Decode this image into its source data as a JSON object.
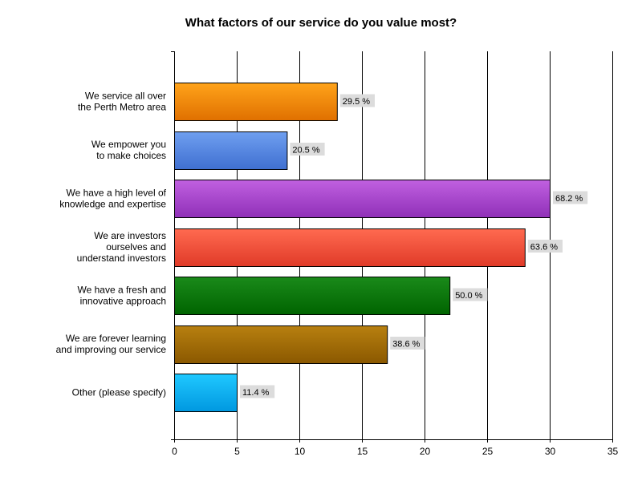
{
  "chart_data": {
    "type": "bar",
    "orientation": "horizontal",
    "title": "What factors of our service do you value most?",
    "xlabel": "",
    "ylabel": "",
    "xlim": [
      0,
      35
    ],
    "x_ticks": [
      "0",
      "5",
      "10",
      "15",
      "20",
      "25",
      "30",
      "35"
    ],
    "grid": true,
    "categories": [
      [
        "We service all over",
        "the Perth Metro area"
      ],
      [
        "We empower you",
        "to make choices"
      ],
      [
        "We have a high level of",
        "knowledge and expertise"
      ],
      [
        "We are investors",
        "ourselves and",
        "understand investors"
      ],
      [
        "We have a fresh and",
        "innovative approach"
      ],
      [
        "We are forever learning",
        "and improving our service"
      ],
      [
        "Other (please specify)"
      ]
    ],
    "values": [
      13,
      9,
      30,
      28,
      22,
      17,
      5
    ],
    "data_labels": [
      "29.5 %",
      "20.5 %",
      "68.2 %",
      "63.6 %",
      "50.0 %",
      "38.6 %",
      "11.4 %"
    ],
    "colors": [
      {
        "light": "#ffa31a",
        "dark": "#e07000"
      },
      {
        "light": "#6f9ff0",
        "dark": "#3f6fd0"
      },
      {
        "light": "#c060e0",
        "dark": "#9030b8"
      },
      {
        "light": "#ff6a50",
        "dark": "#e03a28"
      },
      {
        "light": "#1a8a1a",
        "dark": "#006400"
      },
      {
        "light": "#b88010",
        "dark": "#8a5800"
      },
      {
        "light": "#20c8ff",
        "dark": "#0098e0"
      }
    ]
  }
}
